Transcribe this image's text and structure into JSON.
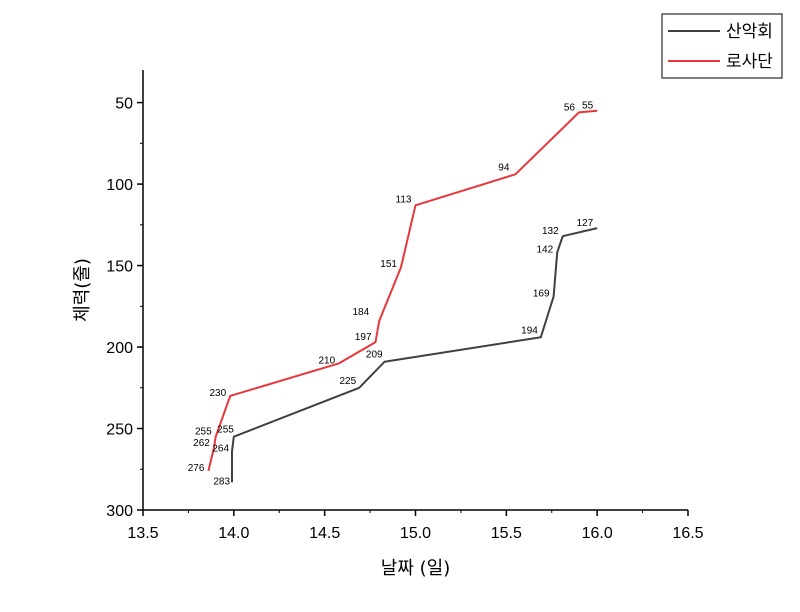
{
  "chart_data": {
    "type": "line",
    "xlabel": "날짜 (일)",
    "ylabel": "체력(줄)",
    "xlim": [
      13.5,
      16.5
    ],
    "ylim": [
      300,
      30
    ],
    "y_inverted": true,
    "xticks": [
      "13.5",
      "14.0",
      "14.5",
      "15.0",
      "15.5",
      "16.0",
      "16.5"
    ],
    "yticks": [
      "50",
      "100",
      "150",
      "200",
      "250",
      "300"
    ],
    "grid": false,
    "legend_position": "top-right",
    "series": [
      {
        "name": "산악회",
        "color": "#404040",
        "points": [
          {
            "x": 13.99,
            "y": 283,
            "label": "283"
          },
          {
            "x": 13.99,
            "y": 264,
            "label": "264"
          },
          {
            "x": 14.0,
            "y": 255,
            "label": "255"
          },
          {
            "x": 14.69,
            "y": 225,
            "label": "225"
          },
          {
            "x": 14.83,
            "y": 209,
            "label": "209"
          },
          {
            "x": 15.69,
            "y": 194,
            "label": "194"
          },
          {
            "x": 15.76,
            "y": 169,
            "label": "169"
          },
          {
            "x": 15.78,
            "y": 142,
            "label": "142"
          },
          {
            "x": 15.81,
            "y": 132,
            "label": "132"
          },
          {
            "x": 16.0,
            "y": 127,
            "label": "127"
          }
        ]
      },
      {
        "name": "로사단",
        "color": "#e8373a",
        "points": [
          {
            "x": 13.86,
            "y": 276,
            "label": "276"
          },
          {
            "x": 13.89,
            "y": 262,
            "label": "262"
          },
          {
            "x": 13.9,
            "y": 255,
            "label": "255"
          },
          {
            "x": 13.98,
            "y": 230,
            "label": "230"
          },
          {
            "x": 14.58,
            "y": 210,
            "label": "210"
          },
          {
            "x": 14.78,
            "y": 197,
            "label": "197"
          },
          {
            "x": 14.8,
            "y": 184,
            "label": "184"
          },
          {
            "x": 14.92,
            "y": 151,
            "label": "151"
          },
          {
            "x": 15.0,
            "y": 113,
            "label": "113"
          },
          {
            "x": 15.55,
            "y": 94,
            "label": "94"
          },
          {
            "x": 15.9,
            "y": 56,
            "label": "56"
          },
          {
            "x": 16.0,
            "y": 55,
            "label": "55"
          }
        ]
      }
    ]
  }
}
